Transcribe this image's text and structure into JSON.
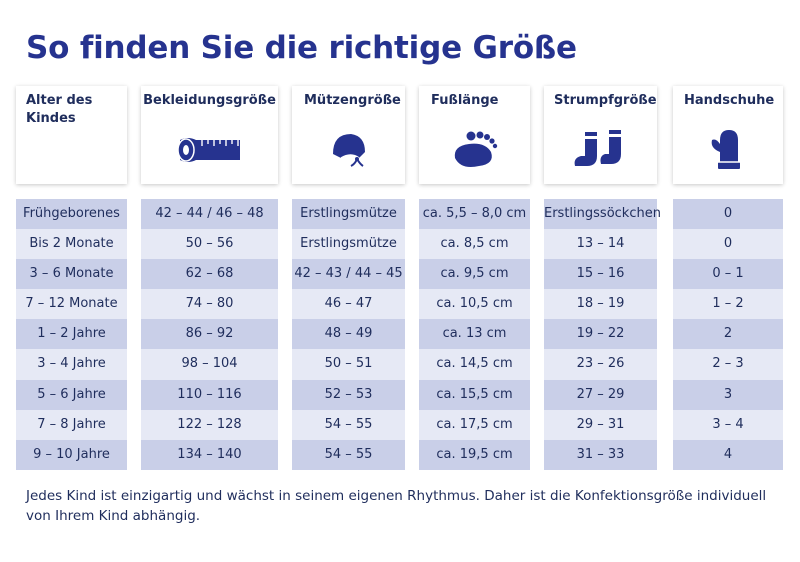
{
  "title": "So finden Sie die richtige Größe",
  "headers": {
    "age": "Alter des Kindes",
    "clothing": "Bekleidungsgröße",
    "hat": "Mützengröße",
    "foot": "Fußlänge",
    "sock": "Strumpfgröße",
    "glove": "Handschuhe"
  },
  "icons": {
    "clothing": "measuring-tape-icon",
    "hat": "baby-bonnet-icon",
    "foot": "footprint-icon",
    "sock": "socks-icon",
    "glove": "mitten-icon"
  },
  "columns": {
    "age": [
      "Frühgeborenes",
      "Bis 2 Monate",
      "3 – 6 Monate",
      "7 – 12 Monate",
      "1 – 2 Jahre",
      "3 – 4 Jahre",
      "5 – 6 Jahre",
      "7 – 8 Jahre",
      "9 – 10 Jahre"
    ],
    "clothing": [
      "42 – 44 / 46 – 48",
      "50 – 56",
      "62 – 68",
      "74 – 80",
      "86 – 92",
      "98 – 104",
      "110 – 116",
      "122 – 128",
      "134 – 140"
    ],
    "hat": [
      "Erstlingsmütze",
      "Erstlingsmütze",
      "42 – 43 / 44 – 45",
      "46 – 47",
      "48 – 49",
      "50 – 51",
      "52 – 53",
      "54 – 55",
      "54 – 55"
    ],
    "foot": [
      "ca. 5,5 – 8,0 cm",
      "ca. 8,5 cm",
      "ca. 9,5 cm",
      "ca. 10,5 cm",
      "ca. 13 cm",
      "ca. 14,5 cm",
      "ca. 15,5 cm",
      "ca. 17,5 cm",
      "ca. 19,5 cm"
    ],
    "sock": [
      "Erstlingssöckchen",
      "13 – 14",
      "15 – 16",
      "18 – 19",
      "19 – 22",
      "23 – 26",
      "27 – 29",
      "29 – 31",
      "31 – 33"
    ],
    "glove": [
      "0",
      "0",
      "0 – 1",
      "1 – 2",
      "2",
      "2 – 3",
      "3",
      "3 – 4",
      "4"
    ]
  },
  "footer": "Jedes Kind ist einzigartig und wächst in seinem eigenen Rhythmus. Daher ist die Konfektionsgröße individuell von Ihrem Kind abhängig.",
  "colors": {
    "title": "#26338f",
    "icon": "#26338f",
    "row_dark": "#c9cfe8",
    "row_light": "#e6e9f5",
    "text": "#1f2d5c"
  }
}
